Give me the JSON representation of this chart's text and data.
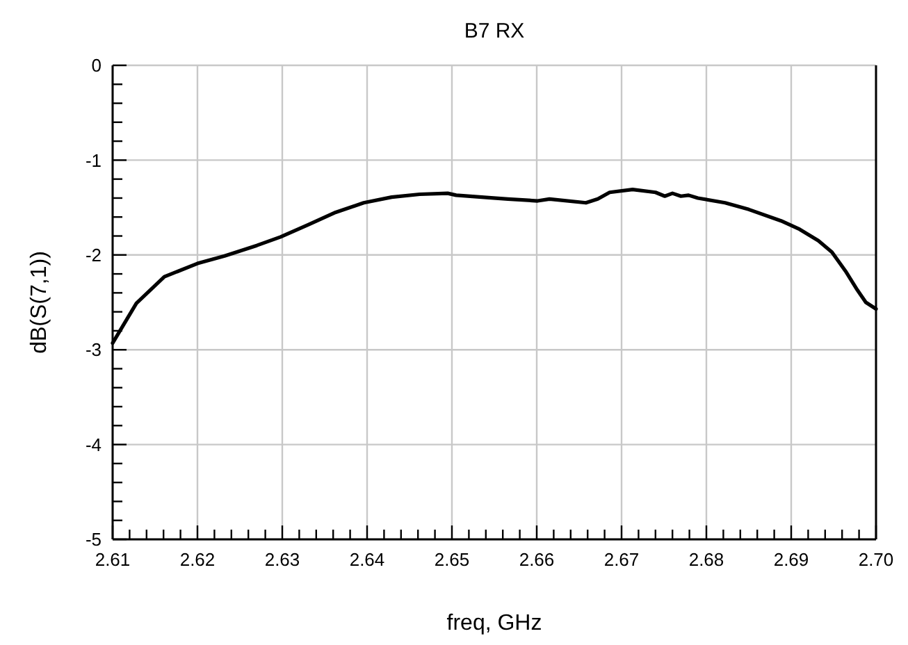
{
  "chart_data": {
    "type": "line",
    "title": "B7 RX",
    "xlabel": "freq, GHz",
    "ylabel": "dB(S(7,1))",
    "xlim": [
      2.61,
      2.7
    ],
    "ylim": [
      -5,
      0
    ],
    "xticks": [
      2.61,
      {
        "value": 2.612,
        "label": null
      },
      {
        "value": 2.614,
        "label": null
      },
      {
        "value": 2.616,
        "label": null
      },
      {
        "value": 2.618,
        "label": null
      },
      2.62,
      {
        "value": 2.622,
        "label": null
      },
      {
        "value": 2.624,
        "label": null
      },
      {
        "value": 2.626,
        "label": null
      },
      {
        "value": 2.628,
        "label": null
      },
      2.63,
      {
        "value": 2.632,
        "label": null
      },
      {
        "value": 2.634,
        "label": null
      },
      {
        "value": 2.636,
        "label": null
      },
      {
        "value": 2.638,
        "label": null
      },
      2.64,
      {
        "value": 2.642,
        "label": null
      },
      {
        "value": 2.644,
        "label": null
      },
      {
        "value": 2.646,
        "label": null
      },
      {
        "value": 2.648,
        "label": null
      },
      2.65,
      {
        "value": 2.652,
        "label": null
      },
      {
        "value": 2.654,
        "label": null
      },
      {
        "value": 2.656,
        "label": null
      },
      {
        "value": 2.658,
        "label": null
      },
      2.66,
      {
        "value": 2.662,
        "label": null
      },
      {
        "value": 2.664,
        "label": null
      },
      {
        "value": 2.666,
        "label": null
      },
      {
        "value": 2.668,
        "label": null
      },
      2.67,
      {
        "value": 2.672,
        "label": null
      },
      {
        "value": 2.674,
        "label": null
      },
      {
        "value": 2.676,
        "label": null
      },
      {
        "value": 2.678,
        "label": null
      },
      2.68,
      {
        "value": 2.682,
        "label": null
      },
      {
        "value": 2.684,
        "label": null
      },
      {
        "value": 2.686,
        "label": null
      },
      {
        "value": 2.688,
        "label": null
      },
      2.69,
      {
        "value": 2.692,
        "label": null
      },
      {
        "value": 2.694,
        "label": null
      },
      {
        "value": 2.696,
        "label": null
      },
      {
        "value": 2.698,
        "label": null
      },
      {
        "value": 2.7,
        "label": "2.70"
      }
    ],
    "yticks": [
      -5,
      {
        "value": -4.8,
        "label": null
      },
      {
        "value": -4.6,
        "label": null
      },
      {
        "value": -4.4,
        "label": null
      },
      {
        "value": -4.2,
        "label": null
      },
      -4,
      {
        "value": -3.8,
        "label": null
      },
      {
        "value": -3.6,
        "label": null
      },
      {
        "value": -3.4,
        "label": null
      },
      {
        "value": -3.2,
        "label": null
      },
      -3,
      {
        "value": -2.8,
        "label": null
      },
      {
        "value": -2.6,
        "label": null
      },
      {
        "value": -2.4,
        "label": null
      },
      {
        "value": -2.2,
        "label": null
      },
      -2,
      {
        "value": -1.8,
        "label": null
      },
      {
        "value": -1.6,
        "label": null
      },
      {
        "value": -1.4,
        "label": null
      },
      {
        "value": -1.2,
        "label": null
      },
      -1,
      {
        "value": -0.8,
        "label": null
      },
      {
        "value": -0.6,
        "label": null
      },
      {
        "value": -0.4,
        "label": null
      },
      {
        "value": -0.2,
        "label": null
      },
      0
    ],
    "grid": true,
    "line_style": "solid",
    "series": [
      {
        "color": "#000000",
        "x": [
          2.61,
          2.6128,
          2.6161,
          2.62,
          2.6232,
          2.627,
          2.6298,
          2.6331,
          2.6363,
          2.6396,
          2.6429,
          2.6462,
          2.6495,
          2.6505,
          2.6549,
          2.6566,
          2.6601,
          2.6615,
          2.6658,
          2.6672,
          2.6686,
          2.6713,
          2.674,
          2.6751,
          2.676,
          2.677,
          2.6779,
          2.679,
          2.6822,
          2.685,
          2.6888,
          2.691,
          2.6932,
          2.6948,
          2.6964,
          2.6978,
          2.6988,
          2.7
        ],
        "values": [
          -2.93,
          -2.51,
          -2.23,
          -2.09,
          -2.01,
          -1.9,
          -1.81,
          -1.68,
          -1.55,
          -1.45,
          -1.39,
          -1.36,
          -1.35,
          -1.37,
          -1.4,
          -1.41,
          -1.43,
          -1.41,
          -1.45,
          -1.41,
          -1.34,
          -1.31,
          -1.34,
          -1.38,
          -1.35,
          -1.38,
          -1.37,
          -1.4,
          -1.45,
          -1.52,
          -1.64,
          -1.73,
          -1.85,
          -1.97,
          -2.17,
          -2.37,
          -2.5,
          -2.57
        ]
      }
    ]
  }
}
